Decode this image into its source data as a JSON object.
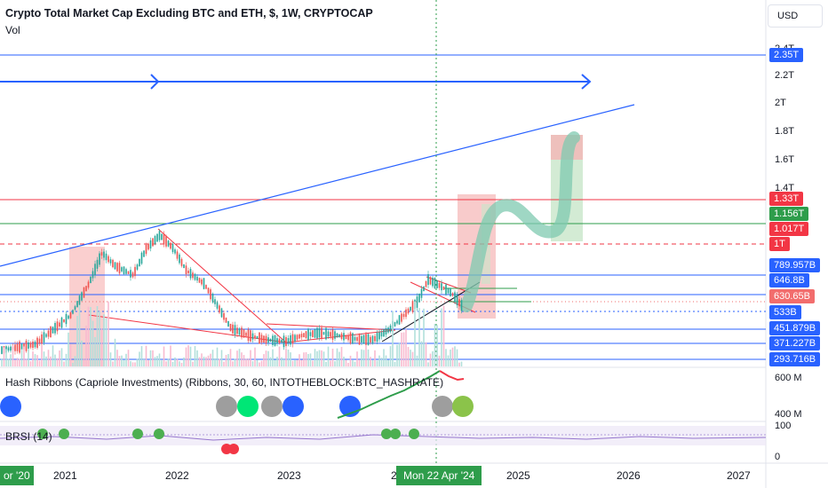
{
  "header": {
    "title": "Crypto Total Market Cap Excluding BTC and ETH, $, 1W, CRYPTOCAP",
    "volume_label": "Vol",
    "currency_button": "USD"
  },
  "price_axis": {
    "labels": [
      {
        "text": "2.4T",
        "y": 56
      },
      {
        "text": "2.2T",
        "y": 86
      },
      {
        "text": "2T",
        "y": 117
      },
      {
        "text": "1.8T",
        "y": 149
      },
      {
        "text": "1.6T",
        "y": 181
      },
      {
        "text": "1.4T",
        "y": 213
      }
    ],
    "tags": [
      {
        "text": "2.35T",
        "color": "#2962ff"
      },
      {
        "text": "1.33T",
        "color": "#f23645"
      },
      {
        "text": "1.156T",
        "color": "#2e9d4b"
      },
      {
        "text": "1.017T",
        "color": "#f23645"
      },
      {
        "text": "1T",
        "color": "#f23645"
      },
      {
        "text": "789.957B",
        "color": "#2962ff"
      },
      {
        "text": "646.8B",
        "color": "#2962ff"
      },
      {
        "text": "630.65B",
        "color": "#f26d6d"
      },
      {
        "text": "533B",
        "color": "#2962ff"
      },
      {
        "text": "451.879B",
        "color": "#2962ff"
      },
      {
        "text": "371.227B",
        "color": "#2962ff"
      },
      {
        "text": "293.716B",
        "color": "#2962ff"
      }
    ]
  },
  "indicators": {
    "hash_ribbons": {
      "label": "Hash Ribbons (Capriole Investments) (Ribbons, 30, 60, INTOTHEBLOCK:BTC_HASHRATE)",
      "axis": [
        "600 M",
        "400 M"
      ]
    },
    "brsi": {
      "label": "BRSI (14)",
      "axis": [
        "100",
        "0"
      ]
    }
  },
  "time_axis": {
    "labels": [
      "2021",
      "2022",
      "2023",
      "2025",
      "2026",
      "2027"
    ],
    "left_partial": "or '20",
    "crosshair_date": "Mon 22 Apr '24",
    "partial_2024": "2"
  },
  "colors": {
    "support_line": "#2962ff",
    "resistance_red": "#f23645",
    "green": "#2e9d4b",
    "candle_up": "#26a69a",
    "candle_down": "#ef5350"
  }
}
